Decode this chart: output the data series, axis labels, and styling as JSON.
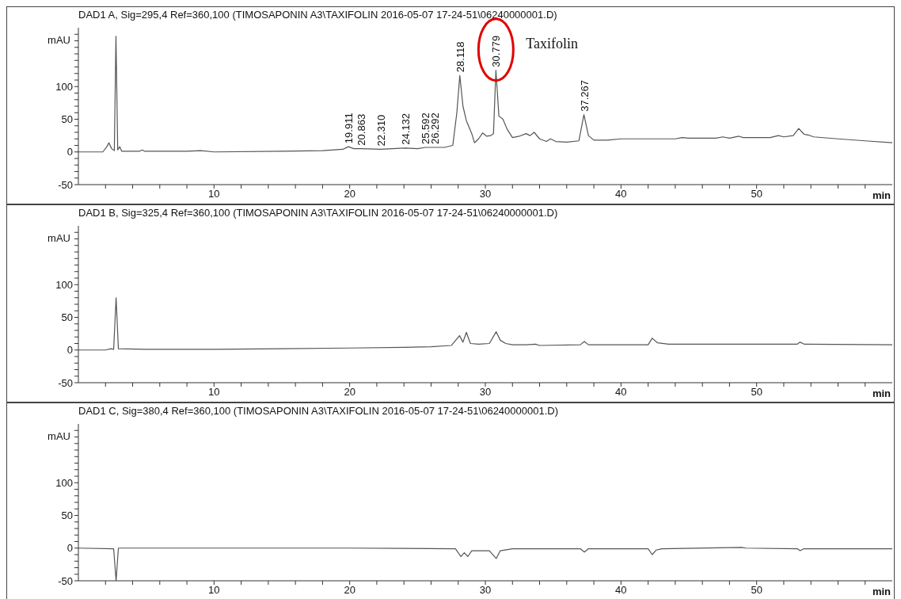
{
  "chart_data": [
    {
      "type": "line",
      "title": "DAD1 A, Sig=295,4 Ref=360,100 (TIMOSAPONIN A3\\TAXIFOLIN 2016-05-07 17-24-51\\06240000001.D)",
      "ylabel": "mAU",
      "xlabel": "min",
      "color": "#555555",
      "xlim": [
        0,
        60
      ],
      "ylim": [
        -50,
        190
      ],
      "xticks": [
        {
          "value": 2,
          "label": null
        },
        {
          "value": 4,
          "label": null
        },
        {
          "value": 6,
          "label": null
        },
        {
          "value": 8,
          "label": null
        },
        10,
        {
          "value": 12,
          "label": null
        },
        {
          "value": 14,
          "label": null
        },
        {
          "value": 16,
          "label": null
        },
        {
          "value": 18,
          "label": null
        },
        20,
        {
          "value": 22,
          "label": null
        },
        {
          "value": 24,
          "label": null
        },
        {
          "value": 26,
          "label": null
        },
        {
          "value": 28,
          "label": null
        },
        30,
        {
          "value": 32,
          "label": null
        },
        {
          "value": 34,
          "label": null
        },
        {
          "value": 36,
          "label": null
        },
        {
          "value": 38,
          "label": null
        },
        40,
        {
          "value": 42,
          "label": null
        },
        {
          "value": 44,
          "label": null
        },
        {
          "value": 46,
          "label": null
        },
        {
          "value": 48,
          "label": null
        },
        50,
        {
          "value": 52,
          "label": null
        },
        {
          "value": 54,
          "label": null
        },
        {
          "value": 56,
          "label": null
        },
        {
          "value": 58,
          "label": null
        }
      ],
      "yticks": [
        -50,
        {
          "value": -40,
          "label": null
        },
        {
          "value": -30,
          "label": null
        },
        {
          "value": -20,
          "label": null
        },
        {
          "value": -10,
          "label": null
        },
        0,
        {
          "value": 10,
          "label": null
        },
        {
          "value": 20,
          "label": null
        },
        {
          "value": 30,
          "label": null
        },
        {
          "value": 40,
          "label": null
        },
        50,
        {
          "value": 60,
          "label": null
        },
        {
          "value": 70,
          "label": null
        },
        {
          "value": 80,
          "label": null
        },
        {
          "value": 90,
          "label": null
        },
        100,
        {
          "value": 110,
          "label": null
        },
        {
          "value": 120,
          "label": null
        },
        {
          "value": 130,
          "label": null
        },
        {
          "value": 140,
          "label": null
        },
        {
          "value": 150,
          "label": null
        },
        {
          "value": 160,
          "label": null
        },
        {
          "value": 170,
          "label": null
        },
        {
          "value": 180,
          "label": null
        }
      ],
      "x": [
        0,
        1.8,
        2.1,
        2.25,
        2.45,
        2.65,
        2.77,
        2.9,
        3.05,
        3.2,
        4.5,
        4.7,
        4.9,
        8,
        9,
        10,
        15,
        18,
        19.5,
        19.9,
        20.3,
        20.86,
        22.31,
        24.13,
        25,
        25.6,
        26.3,
        27,
        27.6,
        27.9,
        28.118,
        28.35,
        28.6,
        29,
        29.2,
        29.5,
        29.8,
        30.1,
        30.4,
        30.6,
        30.779,
        31,
        31.3,
        31.6,
        32,
        32.5,
        33,
        33.3,
        33.6,
        34,
        34.5,
        34.8,
        35.2,
        36,
        36.9,
        37.267,
        37.6,
        38,
        39,
        40,
        42,
        44,
        44.5,
        45,
        47,
        47.5,
        48,
        48.7,
        49,
        51,
        51.6,
        52,
        52.7,
        53.1,
        53.5,
        53.8,
        54.2,
        56,
        58,
        60
      ],
      "values": [
        0,
        0,
        8,
        14,
        5,
        2,
        177,
        3,
        8,
        1,
        1,
        3,
        1,
        1,
        2,
        0,
        1,
        2,
        4,
        8,
        5,
        5,
        4,
        6,
        5,
        7,
        7,
        7,
        10,
        60,
        117,
        70,
        48,
        28,
        14,
        20,
        29,
        24,
        25,
        28,
        125,
        55,
        50,
        35,
        22,
        24,
        28,
        25,
        30,
        20,
        16,
        20,
        16,
        15,
        17,
        57,
        25,
        18,
        18,
        20,
        20,
        20,
        22,
        21,
        21,
        23,
        21,
        24,
        22,
        22,
        25,
        23,
        25,
        36,
        27,
        26,
        23,
        20,
        17,
        14
      ],
      "annotations": [
        {
          "text": "19.911",
          "x": 19.911,
          "y": 8
        },
        {
          "text": "20.863",
          "x": 20.863,
          "y": 5
        },
        {
          "text": "22.310",
          "x": 22.31,
          "y": 4
        },
        {
          "text": "24.132",
          "x": 24.132,
          "y": 6
        },
        {
          "text": "25.592",
          "x": 25.592,
          "y": 7
        },
        {
          "text": "26.292",
          "x": 26.292,
          "y": 7
        },
        {
          "text": "28.118",
          "x": 28.118,
          "y": 117
        },
        {
          "text": "30.779",
          "x": 30.779,
          "y": 125
        },
        {
          "text": "37.267",
          "x": 37.267,
          "y": 57
        },
        {
          "text": "Taxifolin",
          "x": 30.779,
          "y": 125
        }
      ]
    },
    {
      "type": "line",
      "title": "DAD1 B, Sig=325,4 Ref=360,100 (TIMOSAPONIN A3\\TAXIFOLIN 2016-05-07 17-24-51\\06240000001.D)",
      "ylabel": "mAU",
      "xlabel": "min",
      "color": "#555555",
      "xlim": [
        0,
        60
      ],
      "ylim": [
        -50,
        190
      ],
      "xticks": [
        {
          "value": 2,
          "label": null
        },
        {
          "value": 4,
          "label": null
        },
        {
          "value": 6,
          "label": null
        },
        {
          "value": 8,
          "label": null
        },
        10,
        {
          "value": 12,
          "label": null
        },
        {
          "value": 14,
          "label": null
        },
        {
          "value": 16,
          "label": null
        },
        {
          "value": 18,
          "label": null
        },
        20,
        {
          "value": 22,
          "label": null
        },
        {
          "value": 24,
          "label": null
        },
        {
          "value": 26,
          "label": null
        },
        {
          "value": 28,
          "label": null
        },
        30,
        {
          "value": 32,
          "label": null
        },
        {
          "value": 34,
          "label": null
        },
        {
          "value": 36,
          "label": null
        },
        {
          "value": 38,
          "label": null
        },
        40,
        {
          "value": 42,
          "label": null
        },
        {
          "value": 44,
          "label": null
        },
        {
          "value": 46,
          "label": null
        },
        {
          "value": 48,
          "label": null
        },
        50,
        {
          "value": 52,
          "label": null
        },
        {
          "value": 54,
          "label": null
        },
        {
          "value": 56,
          "label": null
        },
        {
          "value": 58,
          "label": null
        }
      ],
      "yticks": [
        -50,
        {
          "value": -40,
          "label": null
        },
        {
          "value": -30,
          "label": null
        },
        {
          "value": -20,
          "label": null
        },
        {
          "value": -10,
          "label": null
        },
        0,
        {
          "value": 10,
          "label": null
        },
        {
          "value": 20,
          "label": null
        },
        {
          "value": 30,
          "label": null
        },
        {
          "value": 40,
          "label": null
        },
        50,
        {
          "value": 60,
          "label": null
        },
        {
          "value": 70,
          "label": null
        },
        {
          "value": 80,
          "label": null
        },
        {
          "value": 90,
          "label": null
        },
        100,
        {
          "value": 110,
          "label": null
        },
        {
          "value": 120,
          "label": null
        },
        {
          "value": 130,
          "label": null
        },
        {
          "value": 140,
          "label": null
        },
        {
          "value": 150,
          "label": null
        },
        {
          "value": 160,
          "label": null
        },
        {
          "value": 170,
          "label": null
        },
        {
          "value": 180,
          "label": null
        }
      ],
      "x": [
        0,
        2,
        2.4,
        2.6,
        2.78,
        2.95,
        5,
        10,
        15,
        20,
        24,
        26,
        27.5,
        28.1,
        28.35,
        28.6,
        28.9,
        29.5,
        30.3,
        30.8,
        31.1,
        31.5,
        32,
        33,
        33.7,
        34,
        37,
        37.3,
        37.6,
        40,
        42,
        42.3,
        42.7,
        43.5,
        50,
        53,
        53.2,
        53.5,
        60
      ],
      "values": [
        0,
        0,
        2,
        1,
        80,
        2,
        1,
        1,
        2,
        3,
        4,
        5,
        7,
        22,
        12,
        27,
        10,
        9,
        10,
        28,
        15,
        10,
        8,
        8,
        9,
        7,
        8,
        13,
        8,
        8,
        8,
        18,
        11,
        9,
        9,
        9,
        12,
        9,
        8
      ]
    },
    {
      "type": "line",
      "title": "DAD1 C, Sig=380,4 Ref=360,100 (TIMOSAPONIN A3\\TAXIFOLIN 2016-05-07 17-24-51\\06240000001.D)",
      "ylabel": "mAU",
      "xlabel": "min",
      "color": "#555555",
      "xlim": [
        0,
        60
      ],
      "ylim": [
        -50,
        190
      ],
      "xticks": [
        {
          "value": 2,
          "label": null
        },
        {
          "value": 4,
          "label": null
        },
        {
          "value": 6,
          "label": null
        },
        {
          "value": 8,
          "label": null
        },
        10,
        {
          "value": 12,
          "label": null
        },
        {
          "value": 14,
          "label": null
        },
        {
          "value": 16,
          "label": null
        },
        {
          "value": 18,
          "label": null
        },
        20,
        {
          "value": 22,
          "label": null
        },
        {
          "value": 24,
          "label": null
        },
        {
          "value": 26,
          "label": null
        },
        {
          "value": 28,
          "label": null
        },
        30,
        {
          "value": 32,
          "label": null
        },
        {
          "value": 34,
          "label": null
        },
        {
          "value": 36,
          "label": null
        },
        {
          "value": 38,
          "label": null
        },
        40,
        {
          "value": 42,
          "label": null
        },
        {
          "value": 44,
          "label": null
        },
        {
          "value": 46,
          "label": null
        },
        {
          "value": 48,
          "label": null
        },
        50,
        {
          "value": 52,
          "label": null
        },
        {
          "value": 54,
          "label": null
        },
        {
          "value": 56,
          "label": null
        },
        {
          "value": 58,
          "label": null
        }
      ],
      "yticks": [
        -50,
        {
          "value": -40,
          "label": null
        },
        {
          "value": -30,
          "label": null
        },
        {
          "value": -20,
          "label": null
        },
        {
          "value": -10,
          "label": null
        },
        0,
        {
          "value": 10,
          "label": null
        },
        {
          "value": 20,
          "label": null
        },
        {
          "value": 30,
          "label": null
        },
        {
          "value": 40,
          "label": null
        },
        50,
        {
          "value": 60,
          "label": null
        },
        {
          "value": 70,
          "label": null
        },
        {
          "value": 80,
          "label": null
        },
        {
          "value": 90,
          "label": null
        },
        100,
        {
          "value": 110,
          "label": null
        },
        {
          "value": 120,
          "label": null
        },
        {
          "value": 130,
          "label": null
        },
        {
          "value": 140,
          "label": null
        },
        {
          "value": 150,
          "label": null
        },
        {
          "value": 160,
          "label": null
        },
        {
          "value": 170,
          "label": null
        },
        {
          "value": 180,
          "label": null
        }
      ],
      "x": [
        0,
        2.6,
        2.78,
        2.95,
        20,
        27.8,
        28.2,
        28.45,
        28.7,
        29,
        30.3,
        30.8,
        31.1,
        32,
        37,
        37.3,
        37.6,
        42,
        42.3,
        42.6,
        43,
        48.9,
        49.2,
        53,
        53.2,
        53.5,
        60
      ],
      "values": [
        0,
        -1,
        -50,
        0,
        0,
        -1,
        -13,
        -7,
        -13,
        -4,
        -4,
        -16,
        -4,
        -1,
        -1,
        -6,
        -1,
        -1,
        -10,
        -3,
        -1,
        1,
        0,
        -1,
        -4,
        -1,
        -1
      ]
    }
  ]
}
